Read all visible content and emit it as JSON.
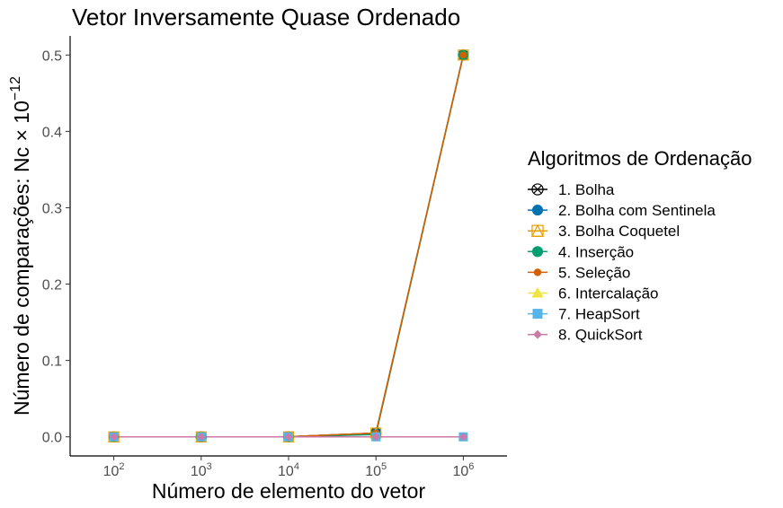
{
  "chart_data": {
    "type": "line",
    "title": "Vetor Inversamente Quase Ordenado",
    "xlabel": "Número de elemento do vetor",
    "ylabel": "Número de comparações: Nc × 10",
    "ylabel_exponent": "−12",
    "x_scale": "log10",
    "x": [
      100,
      1000,
      10000,
      100000,
      1000000
    ],
    "x_tick_base": "10",
    "x_tick_exponents": [
      "2",
      "3",
      "4",
      "5",
      "6"
    ],
    "ylim": [
      -0.025,
      0.525
    ],
    "y_ticks": [
      "0.0",
      "0.1",
      "0.2",
      "0.3",
      "0.4",
      "0.5"
    ],
    "grid": false,
    "legend": {
      "title": "Algoritmos de Ordenação",
      "position": "right"
    },
    "series": [
      {
        "name": "1. Bolha",
        "color": "#000000",
        "marker": "circle-x",
        "values": [
          0,
          0,
          5e-05,
          0.005,
          0.5
        ]
      },
      {
        "name": "2. Bolha com Sentinela",
        "color": "#0072B2",
        "marker": "circle",
        "values": [
          0,
          0,
          5e-05,
          0.005,
          0.5
        ]
      },
      {
        "name": "3. Bolha Coquetel",
        "color": "#E69F00",
        "marker": "square-triangle",
        "values": [
          0,
          0,
          5e-05,
          0.005,
          0.5
        ]
      },
      {
        "name": "4. Inserção",
        "color": "#009E73",
        "marker": "circle",
        "values": [
          0,
          0,
          3e-05,
          0.003,
          0.5
        ]
      },
      {
        "name": "5. Seleção",
        "color": "#D55E00",
        "marker": "small-circle",
        "values": [
          0,
          0,
          5e-05,
          0.005,
          0.5
        ]
      },
      {
        "name": "6. Intercalação",
        "color": "#F0E442",
        "marker": "triangle",
        "values": [
          0,
          0,
          0,
          0,
          0
        ]
      },
      {
        "name": "7. HeapSort",
        "color": "#56B4E9",
        "marker": "square",
        "values": [
          0,
          0,
          0,
          0,
          0
        ]
      },
      {
        "name": "8. QuickSort",
        "color": "#CC79A7",
        "marker": "diamond",
        "values": [
          0,
          0,
          0,
          0,
          0
        ]
      }
    ]
  }
}
